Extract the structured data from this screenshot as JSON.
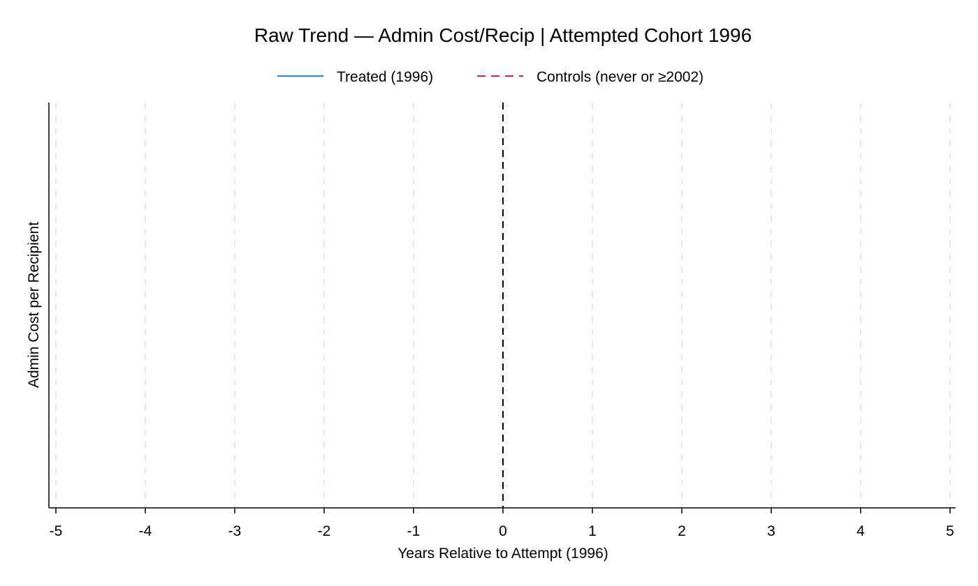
{
  "chart_data": {
    "type": "line",
    "title": "Raw Trend — Admin Cost/Recip | Attempted Cohort 1996",
    "xlabel": "Years Relative to Attempt (1996)",
    "ylabel": "Admin Cost per Recipient",
    "xlim": [
      -5,
      5
    ],
    "x_ticks": [
      -5,
      -4,
      -3,
      -2,
      -1,
      0,
      1,
      2,
      3,
      4,
      5
    ],
    "x_tick_labels": [
      "-5",
      "-4",
      "-3",
      "-2",
      "-1",
      "0",
      "1",
      "2",
      "3",
      "4",
      "5"
    ],
    "grid": "vertical dashed",
    "reference_line_x": 0,
    "legend_position": "top-center",
    "series": [
      {
        "name": "Treated (1996)",
        "style": "solid",
        "color": "#1e88e5",
        "x": [],
        "y": []
      },
      {
        "name": "Controls (never or ≥2002)",
        "style": "dashed",
        "color": "#d81b60",
        "x": [],
        "y": []
      }
    ]
  }
}
